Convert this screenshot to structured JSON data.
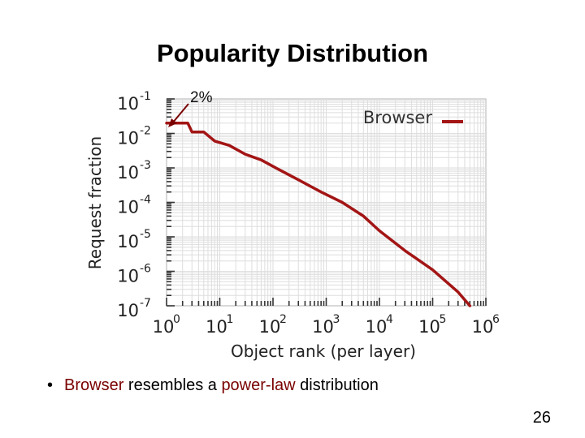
{
  "slide": {
    "title": "Popularity Distribution",
    "bullet": {
      "marker": "•",
      "parts": [
        "Browser",
        " resembles a ",
        "power-law",
        " distribution"
      ]
    },
    "page_number": "26"
  },
  "chart_data": {
    "type": "line",
    "xlabel": "Object rank (per layer)",
    "ylabel": "Request fraction",
    "x_scale": "log",
    "y_scale": "log",
    "xlim": [
      1,
      1000000
    ],
    "ylim": [
      1e-07,
      0.1
    ],
    "x_ticks": [
      {
        "base": "10",
        "exp": "0"
      },
      {
        "base": "10",
        "exp": "1"
      },
      {
        "base": "10",
        "exp": "2"
      },
      {
        "base": "10",
        "exp": "3"
      },
      {
        "base": "10",
        "exp": "4"
      },
      {
        "base": "10",
        "exp": "5"
      },
      {
        "base": "10",
        "exp": "6"
      }
    ],
    "y_ticks": [
      {
        "base": "10",
        "exp": "-1"
      },
      {
        "base": "10",
        "exp": "-2"
      },
      {
        "base": "10",
        "exp": "-3"
      },
      {
        "base": "10",
        "exp": "-4"
      },
      {
        "base": "10",
        "exp": "-5"
      },
      {
        "base": "10",
        "exp": "-6"
      },
      {
        "base": "10",
        "exp": "-7"
      }
    ],
    "grid": true,
    "legend": "top-right",
    "series": [
      {
        "name": "Browser",
        "color": "#a31515",
        "points": [
          [
            1,
            0.02
          ],
          [
            2.5,
            0.02
          ],
          [
            3,
            0.011
          ],
          [
            5,
            0.011
          ],
          [
            8,
            0.006
          ],
          [
            15,
            0.0045
          ],
          [
            30,
            0.0025
          ],
          [
            60,
            0.0017
          ],
          [
            120,
            0.00095
          ],
          [
            300,
            0.00045
          ],
          [
            800,
            0.0002
          ],
          [
            2000,
            0.0001
          ],
          [
            5000,
            4e-05
          ],
          [
            10000,
            1.5e-05
          ],
          [
            30000,
            4e-06
          ],
          [
            100000,
            1.1e-06
          ],
          [
            300000,
            2.5e-07
          ],
          [
            500000,
            1e-07
          ]
        ]
      }
    ],
    "annotations": [
      {
        "text": "2%",
        "x": 1,
        "y": 0.02,
        "arrow": true
      }
    ]
  }
}
